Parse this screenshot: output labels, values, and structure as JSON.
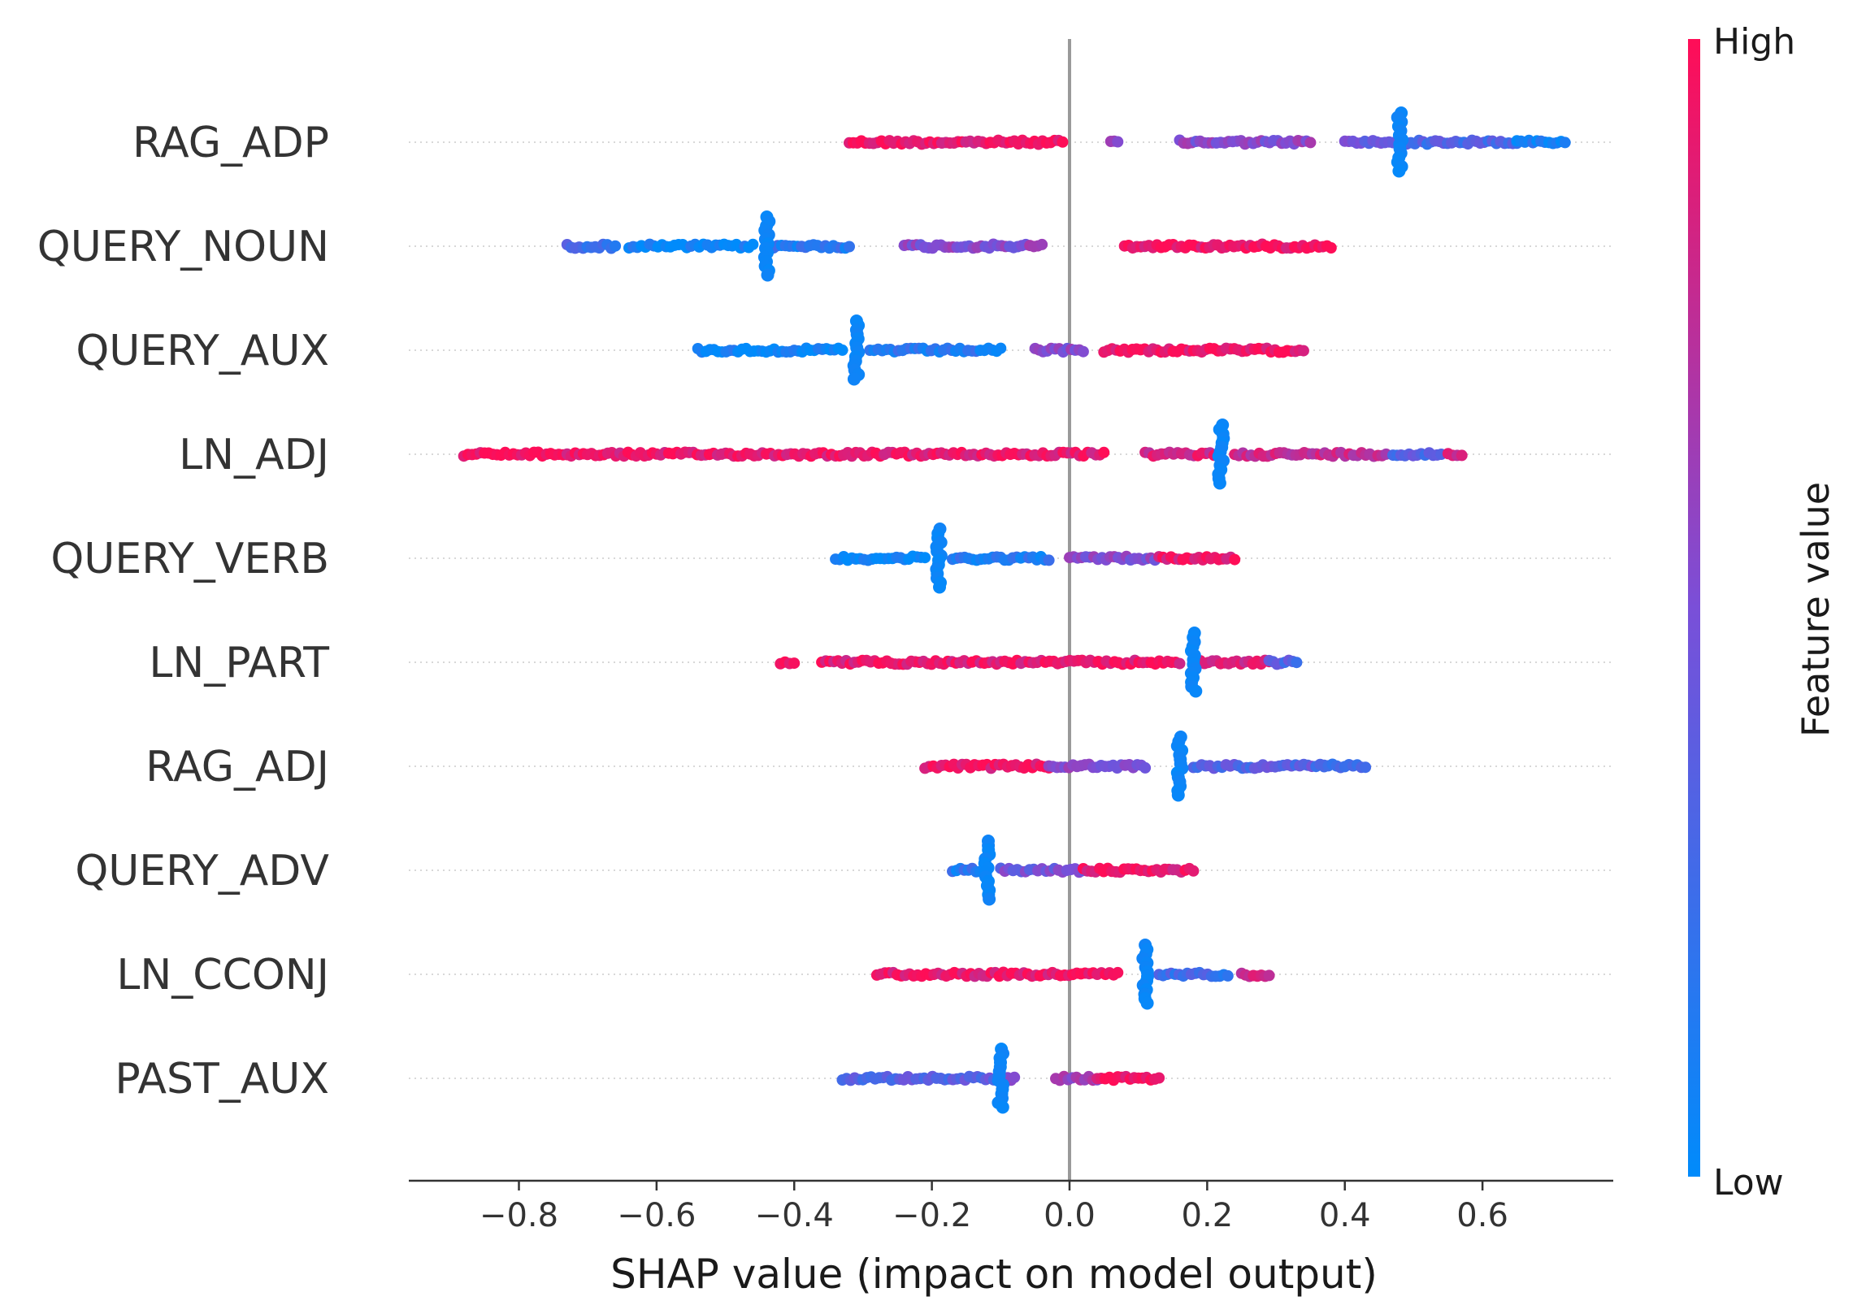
{
  "chart_data": {
    "type": "scatter",
    "subtype": "shap-beeswarm",
    "title": "",
    "xlabel": "SHAP value (impact on model output)",
    "ylabel": "",
    "xlim": [
      -0.96,
      0.79
    ],
    "x_ticks": [
      -0.8,
      -0.6,
      -0.4,
      -0.2,
      0.0,
      0.2,
      0.4,
      0.6
    ],
    "x_tick_labels": [
      "−0.8",
      "−0.6",
      "−0.4",
      "−0.2",
      "0.0",
      "0.2",
      "0.4",
      "0.6"
    ],
    "zero_line": 0.0,
    "colorbar": {
      "title": "Feature value",
      "high_label": "High",
      "low_label": "Low",
      "high_color": "#ff0d57",
      "low_color": "#008bfb"
    },
    "features": [
      {
        "name": "RAG_ADP",
        "dense_x": 0.48,
        "segments": [
          [
            -0.32,
            -0.01,
            0.92
          ],
          [
            0.06,
            0.07,
            0.55
          ],
          [
            0.16,
            0.35,
            0.55
          ],
          [
            0.4,
            0.47,
            0.45
          ],
          [
            0.49,
            0.65,
            0.3
          ],
          [
            0.65,
            0.72,
            0.1
          ]
        ]
      },
      {
        "name": "QUERY_NOUN",
        "dense_x": -0.44,
        "segments": [
          [
            -0.73,
            -0.66,
            0.25
          ],
          [
            -0.64,
            -0.46,
            0.05
          ],
          [
            -0.43,
            -0.32,
            0.15
          ],
          [
            -0.24,
            -0.04,
            0.55
          ],
          [
            0.08,
            0.38,
            0.95
          ]
        ]
      },
      {
        "name": "QUERY_AUX",
        "dense_x": -0.31,
        "segments": [
          [
            -0.54,
            -0.33,
            0.05
          ],
          [
            -0.29,
            -0.1,
            0.15
          ],
          [
            -0.05,
            0.02,
            0.55
          ],
          [
            0.05,
            0.34,
            0.95
          ]
        ]
      },
      {
        "name": "LN_ADJ",
        "dense_x": 0.22,
        "segments": [
          [
            -0.88,
            -0.73,
            0.98
          ],
          [
            -0.73,
            0.05,
            0.92
          ],
          [
            0.11,
            0.21,
            0.85
          ],
          [
            0.24,
            0.46,
            0.78
          ],
          [
            0.47,
            0.54,
            0.35
          ],
          [
            0.55,
            0.57,
            0.8
          ]
        ]
      },
      {
        "name": "QUERY_VERB",
        "dense_x": -0.19,
        "segments": [
          [
            -0.34,
            -0.21,
            0.03
          ],
          [
            -0.17,
            -0.03,
            0.15
          ],
          [
            0.0,
            0.13,
            0.55
          ],
          [
            0.13,
            0.24,
            0.92
          ]
        ]
      },
      {
        "name": "LN_PART",
        "dense_x": 0.18,
        "segments": [
          [
            -0.42,
            -0.4,
            0.98
          ],
          [
            -0.36,
            0.16,
            0.92
          ],
          [
            0.19,
            0.29,
            0.85
          ],
          [
            0.29,
            0.33,
            0.35
          ]
        ]
      },
      {
        "name": "RAG_ADJ",
        "dense_x": 0.16,
        "segments": [
          [
            -0.21,
            -0.03,
            0.92
          ],
          [
            -0.03,
            0.11,
            0.55
          ],
          [
            0.18,
            0.37,
            0.35
          ],
          [
            0.37,
            0.43,
            0.2
          ]
        ]
      },
      {
        "name": "QUERY_ADV",
        "dense_x": -0.12,
        "segments": [
          [
            -0.17,
            -0.13,
            0.15
          ],
          [
            -0.1,
            0.02,
            0.45
          ],
          [
            0.02,
            0.18,
            0.92
          ]
        ]
      },
      {
        "name": "LN_CCONJ",
        "dense_x": 0.11,
        "segments": [
          [
            -0.28,
            0.07,
            0.92
          ],
          [
            0.13,
            0.23,
            0.25
          ],
          [
            0.25,
            0.29,
            0.8
          ]
        ]
      },
      {
        "name": "PAST_AUX",
        "dense_x": -0.1,
        "segments": [
          [
            -0.33,
            -0.11,
            0.35
          ],
          [
            -0.09,
            -0.08,
            0.55
          ],
          [
            -0.02,
            0.04,
            0.6
          ],
          [
            0.04,
            0.13,
            0.95
          ]
        ]
      }
    ]
  }
}
